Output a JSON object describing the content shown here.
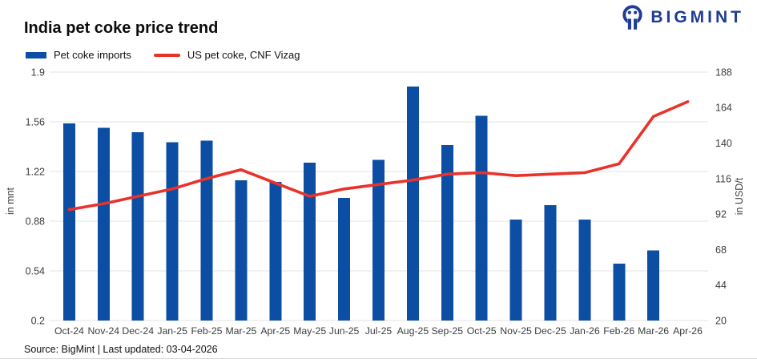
{
  "header": {
    "title": "India pet coke price trend",
    "brand": "BIGMINT"
  },
  "legend": {
    "items": [
      {
        "label": "Pet coke imports",
        "color": "#0b4ea3",
        "swatch": "bar"
      },
      {
        "label": "US pet coke, CNF Vizag",
        "color": "#e9322b",
        "swatch": "line"
      }
    ]
  },
  "footer": {
    "source": "Source: BigMint | Last updated: 03-04-2026"
  },
  "colors": {
    "bar": "#0b4ea3",
    "line": "#e9322b",
    "grid": "#e3e3e3",
    "axis_text": "#3d3d3d",
    "brand_navy": "#1e3c96"
  },
  "chart_data": {
    "type": "bar",
    "title": "India pet coke price trend",
    "categories": [
      "Oct-24",
      "Nov-24",
      "Dec-24",
      "Jan-25",
      "Feb-25",
      "Mar-25",
      "Apr-25",
      "May-25",
      "Jun-25",
      "Jul-25",
      "Aug-25",
      "Sep-25",
      "Oct-25",
      "Nov-25",
      "Dec-25",
      "Jan-26",
      "Feb-26",
      "Mar-26",
      "Apr-26"
    ],
    "series": [
      {
        "name": "Pet coke imports",
        "type": "bar",
        "axis": "left",
        "unit": "mnt",
        "values": [
          1.55,
          1.52,
          1.49,
          1.42,
          1.43,
          1.16,
          1.15,
          1.28,
          1.04,
          1.3,
          1.8,
          1.4,
          1.6,
          0.89,
          0.99,
          0.89,
          0.59,
          0.68,
          null
        ]
      },
      {
        "name": "US pet coke, CNF Vizag",
        "type": "line",
        "axis": "right",
        "unit": "USD/t",
        "values": [
          95,
          99,
          104,
          109,
          116,
          122,
          113,
          104,
          109,
          112,
          115,
          119,
          120,
          118,
          119,
          120,
          126,
          158,
          168
        ]
      }
    ],
    "ylabel_left": "in mnt",
    "ylabel_right": "in USD/t",
    "left_axis": {
      "tick_labels": [
        "1.9",
        "1.56",
        "1.22",
        "0.88",
        "0.54",
        "0.2"
      ],
      "min": 0.2,
      "max": 1.9
    },
    "right_axis": {
      "tick_labels": [
        "188",
        "164",
        "140",
        "116",
        "92",
        "68",
        "44",
        "20"
      ],
      "min": 20,
      "max": 188
    },
    "grid": "horizontal",
    "legend_position": "top-left"
  }
}
